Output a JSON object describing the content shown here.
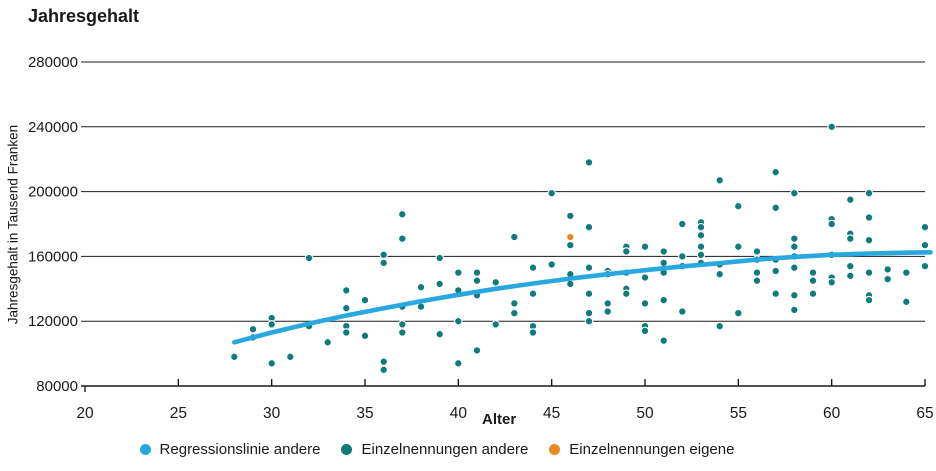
{
  "chart_data": {
    "type": "scatter",
    "title": "Jahresgehalt",
    "xlabel": "Alter",
    "ylabel": "Jahresgehalt in Tausend Franken",
    "xlim": [
      20,
      65
    ],
    "ylim": [
      80000,
      280000
    ],
    "x_ticks": [
      20,
      25,
      30,
      35,
      40,
      45,
      50,
      55,
      60,
      65
    ],
    "y_ticks": [
      80000,
      120000,
      160000,
      200000,
      240000,
      280000
    ],
    "grid": "horizontal-only",
    "legend_position": "bottom",
    "axis_color": "#1a1a1a",
    "series": [
      {
        "name": "Regressionslinie andere",
        "type": "line",
        "color": "#29a8e0",
        "points": [
          [
            28,
            107000
          ],
          [
            30,
            113000
          ],
          [
            32,
            118500
          ],
          [
            34,
            123500
          ],
          [
            36,
            128000
          ],
          [
            38,
            132300
          ],
          [
            40,
            136300
          ],
          [
            42,
            140000
          ],
          [
            44,
            143300
          ],
          [
            46,
            146300
          ],
          [
            48,
            149000
          ],
          [
            50,
            151500
          ],
          [
            52,
            153800
          ],
          [
            54,
            155800
          ],
          [
            56,
            158000
          ],
          [
            58,
            159700
          ],
          [
            60,
            161000
          ],
          [
            62,
            161800
          ],
          [
            64,
            162300
          ],
          [
            65.3,
            162500
          ]
        ]
      },
      {
        "name": "Einzelnennungen andere",
        "type": "scatter",
        "color": "#0e7d7a",
        "points": [
          [
            28,
            98000
          ],
          [
            29,
            115000
          ],
          [
            29,
            110000
          ],
          [
            30,
            122000
          ],
          [
            30,
            118000
          ],
          [
            30,
            94000
          ],
          [
            31,
            98000
          ],
          [
            32,
            159000
          ],
          [
            32,
            117000
          ],
          [
            33,
            107000
          ],
          [
            34,
            139000
          ],
          [
            34,
            128000
          ],
          [
            34,
            117000
          ],
          [
            34,
            113000
          ],
          [
            35,
            133000
          ],
          [
            35,
            111000
          ],
          [
            36,
            161000
          ],
          [
            36,
            156000
          ],
          [
            36,
            95000
          ],
          [
            36,
            90000
          ],
          [
            37,
            186000
          ],
          [
            37,
            171000
          ],
          [
            37,
            129000
          ],
          [
            37,
            118000
          ],
          [
            37,
            113000
          ],
          [
            38,
            141000
          ],
          [
            38,
            129000
          ],
          [
            39,
            159000
          ],
          [
            39,
            143000
          ],
          [
            39,
            112000
          ],
          [
            40,
            150000
          ],
          [
            40,
            139000
          ],
          [
            40,
            120000
          ],
          [
            40,
            94000
          ],
          [
            41,
            150000
          ],
          [
            41,
            145000
          ],
          [
            41,
            136000
          ],
          [
            41,
            102000
          ],
          [
            42,
            144000
          ],
          [
            42,
            118000
          ],
          [
            43,
            172000
          ],
          [
            43,
            131000
          ],
          [
            43,
            125000
          ],
          [
            44,
            153000
          ],
          [
            44,
            137000
          ],
          [
            44,
            117000
          ],
          [
            44,
            113000
          ],
          [
            45,
            199000
          ],
          [
            45,
            155000
          ],
          [
            46,
            185000
          ],
          [
            46,
            167000
          ],
          [
            46,
            149000
          ],
          [
            46,
            143000
          ],
          [
            47,
            218000
          ],
          [
            47,
            178000
          ],
          [
            47,
            153000
          ],
          [
            47,
            137000
          ],
          [
            47,
            125000
          ],
          [
            47,
            120000
          ],
          [
            48,
            151000
          ],
          [
            48,
            149000
          ],
          [
            48,
            131000
          ],
          [
            48,
            126000
          ],
          [
            49,
            166000
          ],
          [
            49,
            163000
          ],
          [
            49,
            150000
          ],
          [
            49,
            140000
          ],
          [
            49,
            137000
          ],
          [
            50,
            166000
          ],
          [
            50,
            147000
          ],
          [
            50,
            131000
          ],
          [
            50,
            117000
          ],
          [
            50,
            114000
          ],
          [
            51,
            163000
          ],
          [
            51,
            156000
          ],
          [
            51,
            150000
          ],
          [
            51,
            133000
          ],
          [
            51,
            108000
          ],
          [
            52,
            180000
          ],
          [
            52,
            160000
          ],
          [
            52,
            154000
          ],
          [
            52,
            126000
          ],
          [
            53,
            181000
          ],
          [
            53,
            178000
          ],
          [
            53,
            173000
          ],
          [
            53,
            166000
          ],
          [
            53,
            161000
          ],
          [
            53,
            156000
          ],
          [
            54,
            207000
          ],
          [
            54,
            155000
          ],
          [
            54,
            149000
          ],
          [
            54,
            117000
          ],
          [
            55,
            191000
          ],
          [
            55,
            166000
          ],
          [
            55,
            125000
          ],
          [
            56,
            163000
          ],
          [
            56,
            158000
          ],
          [
            56,
            150000
          ],
          [
            56,
            145000
          ],
          [
            57,
            212000
          ],
          [
            57,
            190000
          ],
          [
            57,
            158000
          ],
          [
            57,
            151000
          ],
          [
            57,
            137000
          ],
          [
            58,
            199000
          ],
          [
            58,
            171000
          ],
          [
            58,
            166000
          ],
          [
            58,
            160000
          ],
          [
            58,
            153000
          ],
          [
            58,
            136000
          ],
          [
            58,
            127000
          ],
          [
            59,
            150000
          ],
          [
            59,
            145000
          ],
          [
            59,
            137000
          ],
          [
            60,
            240000
          ],
          [
            60,
            183000
          ],
          [
            60,
            180000
          ],
          [
            60,
            161000
          ],
          [
            60,
            147000
          ],
          [
            60,
            144000
          ],
          [
            61,
            195000
          ],
          [
            61,
            174000
          ],
          [
            61,
            171000
          ],
          [
            61,
            154000
          ],
          [
            61,
            148000
          ],
          [
            62,
            199000
          ],
          [
            62,
            184000
          ],
          [
            62,
            170000
          ],
          [
            62,
            150000
          ],
          [
            62,
            136000
          ],
          [
            62,
            133000
          ],
          [
            63,
            152000
          ],
          [
            63,
            146000
          ],
          [
            64,
            150000
          ],
          [
            64,
            132000
          ],
          [
            65,
            178000
          ],
          [
            65,
            167000
          ],
          [
            65,
            154000
          ]
        ]
      },
      {
        "name": "Einzelnennungen eigene",
        "type": "scatter",
        "color": "#e8891f",
        "points": [
          [
            46,
            172000
          ]
        ]
      }
    ]
  }
}
